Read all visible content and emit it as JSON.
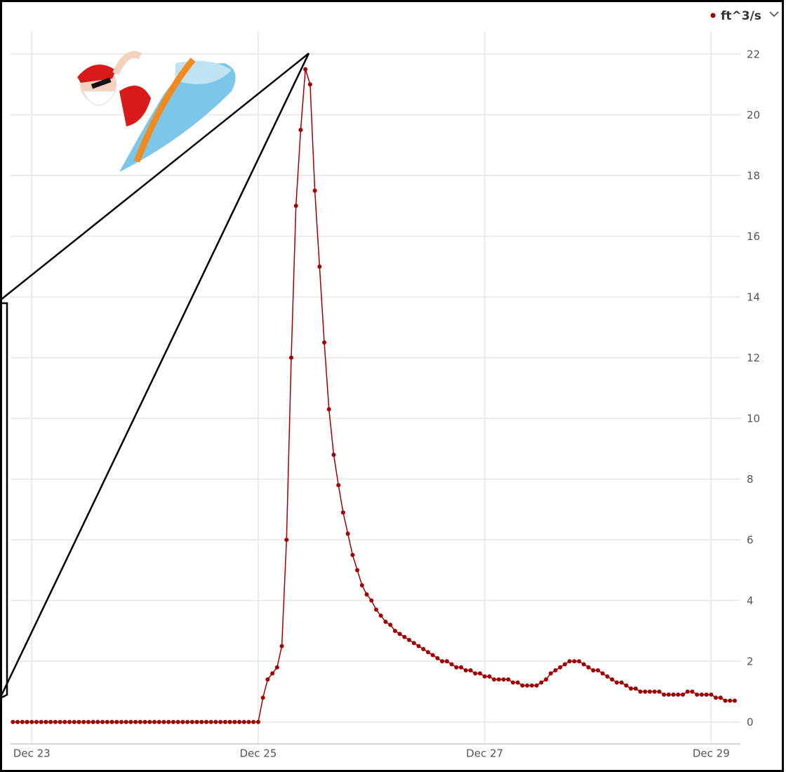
{
  "chart_data": {
    "type": "line",
    "legend": "ft^3/s",
    "x": [
      -4,
      -3,
      -2,
      -1,
      0,
      1,
      2,
      3,
      4,
      5,
      6,
      7,
      8,
      9,
      10,
      11,
      12,
      13,
      14,
      15,
      16,
      17,
      18,
      19,
      20,
      21,
      22,
      23,
      24,
      25,
      26,
      27,
      28,
      29,
      30,
      31,
      32,
      33,
      34,
      35,
      36,
      37,
      38,
      39,
      40,
      41,
      42,
      43,
      44,
      45,
      46,
      47,
      48,
      49,
      50,
      51,
      52,
      53,
      54,
      55,
      56,
      57,
      58,
      59,
      60,
      61,
      62,
      63,
      64,
      65,
      66,
      67,
      68,
      69,
      70,
      71,
      72,
      73,
      74,
      75,
      76,
      77,
      78,
      79,
      80,
      81,
      82,
      83,
      84,
      85,
      86,
      87,
      88,
      89,
      90,
      91,
      92,
      93,
      94,
      95,
      96,
      97,
      98,
      99,
      100,
      101,
      102,
      103,
      104,
      105,
      106,
      107,
      108,
      109,
      110,
      111,
      112,
      113,
      114,
      115,
      116,
      117,
      118,
      119,
      120,
      121,
      122,
      123,
      124,
      125,
      126,
      127,
      128,
      129,
      130,
      131,
      132,
      133,
      134,
      135,
      136,
      137,
      138,
      139,
      140,
      141,
      142,
      143,
      144,
      145,
      146,
      147,
      148,
      149
    ],
    "series": [
      {
        "name": "ft^3/s",
        "color": "#a00000",
        "values": [
          0,
          0,
          0,
          0,
          0,
          0,
          0,
          0,
          0,
          0,
          0,
          0,
          0,
          0,
          0,
          0,
          0,
          0,
          0,
          0,
          0,
          0,
          0,
          0,
          0,
          0,
          0,
          0,
          0,
          0,
          0,
          0,
          0,
          0,
          0,
          0,
          0,
          0,
          0,
          0,
          0,
          0,
          0,
          0,
          0,
          0,
          0,
          0,
          0,
          0,
          0,
          0,
          0,
          0.8,
          1.4,
          1.6,
          1.8,
          2.5,
          6,
          12,
          17,
          19.5,
          21.5,
          21,
          17.5,
          15,
          12.5,
          10.3,
          8.8,
          7.8,
          6.9,
          6.2,
          5.5,
          5.0,
          4.5,
          4.2,
          4.0,
          3.7,
          3.5,
          3.3,
          3.2,
          3.0,
          2.9,
          2.8,
          2.7,
          2.6,
          2.5,
          2.4,
          2.3,
          2.2,
          2.1,
          2.0,
          2.0,
          1.9,
          1.8,
          1.8,
          1.7,
          1.7,
          1.6,
          1.6,
          1.5,
          1.5,
          1.4,
          1.4,
          1.4,
          1.4,
          1.3,
          1.3,
          1.2,
          1.2,
          1.2,
          1.2,
          1.3,
          1.4,
          1.6,
          1.7,
          1.8,
          1.9,
          2.0,
          2.0,
          2.0,
          1.9,
          1.8,
          1.7,
          1.7,
          1.6,
          1.5,
          1.4,
          1.3,
          1.3,
          1.2,
          1.1,
          1.1,
          1.0,
          1.0,
          1.0,
          1.0,
          1.0,
          0.9,
          0.9,
          0.9,
          0.9,
          0.9,
          1.0,
          1.0,
          0.9,
          0.9,
          0.9,
          0.9,
          0.8,
          0.8,
          0.7,
          0.7,
          0.7
        ]
      }
    ],
    "xlim": [
      -4.5,
      150.2
    ],
    "xticks": [
      {
        "value": 0,
        "label": "Dec 23"
      },
      {
        "value": 48,
        "label": "Dec 25"
      },
      {
        "value": 96,
        "label": "Dec 27"
      },
      {
        "value": 144,
        "label": "Dec 29"
      }
    ],
    "ylim": [
      -0.7,
      22.74
    ],
    "yticks": [
      0,
      2,
      4,
      6,
      8,
      10,
      12,
      14,
      16,
      18,
      20,
      22
    ],
    "grid": true
  }
}
